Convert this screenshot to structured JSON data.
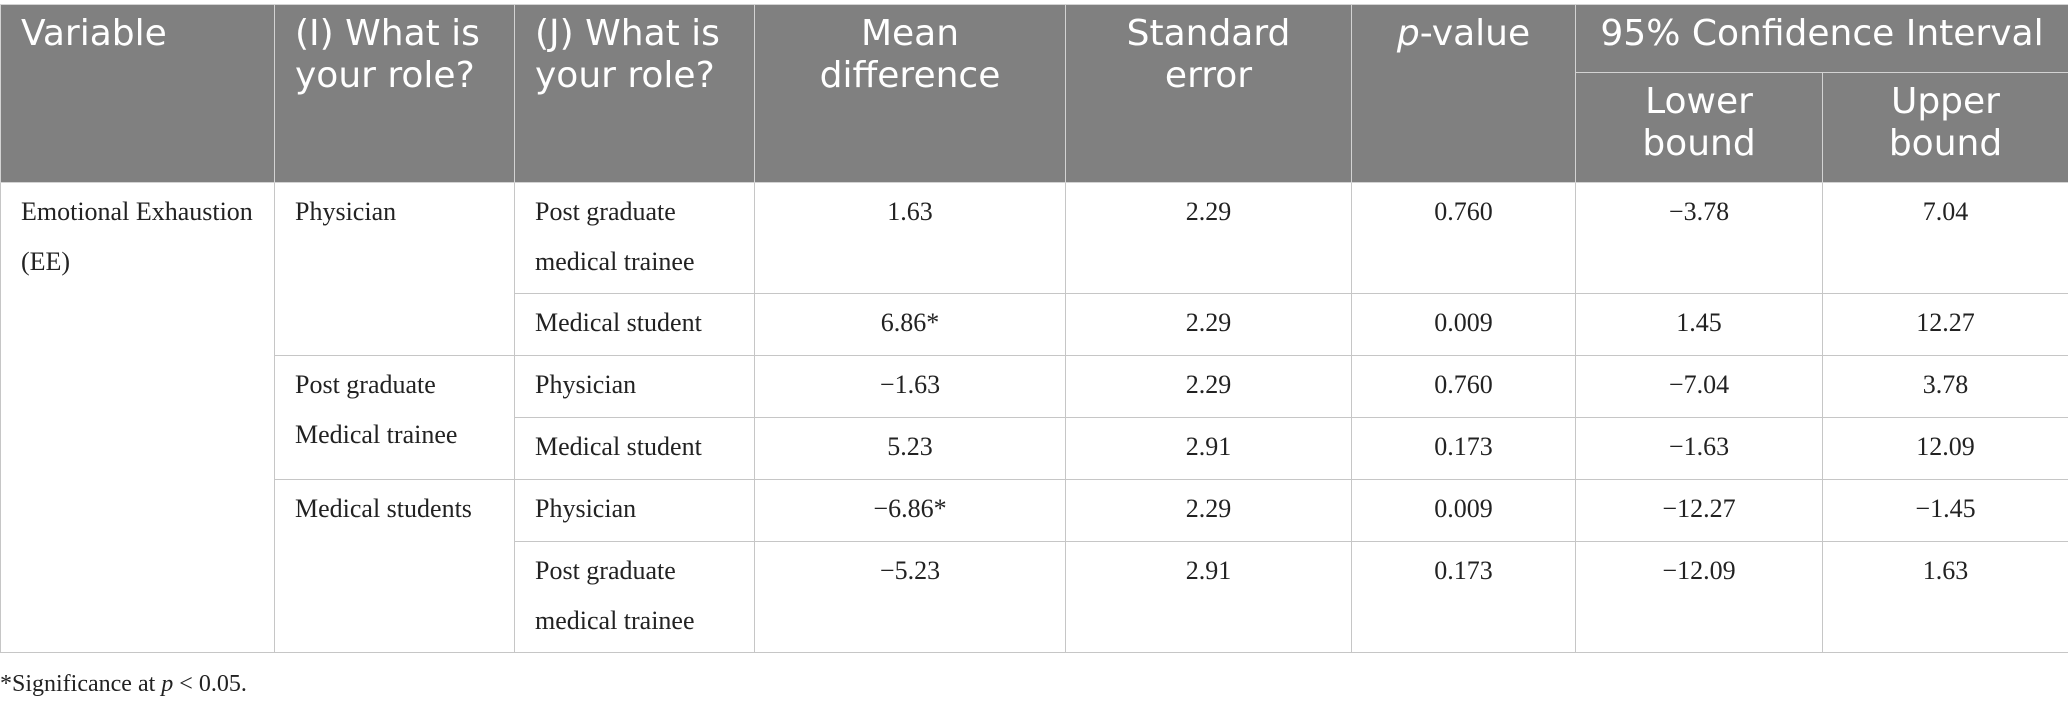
{
  "table": {
    "headers": {
      "variable": "Variable",
      "i_role": "(I) What is your role?",
      "j_role": "(J) What is your role?",
      "mean_difference": "Mean difference",
      "standard_error": "Standard error",
      "p_value_prefix": "p",
      "p_value_suffix": "-value",
      "ci": "95% Confidence Interval",
      "lower_bound": "Lower bound",
      "upper_bound": "Upper bound"
    },
    "variable": "Emotional Exhaustion (EE)",
    "groups": [
      {
        "i_role": "Physician",
        "rows": [
          {
            "j_role": "Post graduate medical trainee",
            "mean_difference": "1.63",
            "standard_error": "2.29",
            "p_value": "0.760",
            "lower": "−3.78",
            "upper": "7.04"
          },
          {
            "j_role": "Medical student",
            "mean_difference": "6.86*",
            "standard_error": "2.29",
            "p_value": "0.009",
            "lower": "1.45",
            "upper": "12.27"
          }
        ]
      },
      {
        "i_role": "Post graduate Medical trainee",
        "rows": [
          {
            "j_role": "Physician",
            "mean_difference": "−1.63",
            "standard_error": "2.29",
            "p_value": "0.760",
            "lower": "−7.04",
            "upper": "3.78"
          },
          {
            "j_role": "Medical student",
            "mean_difference": "5.23",
            "standard_error": "2.91",
            "p_value": "0.173",
            "lower": "−1.63",
            "upper": "12.09"
          }
        ]
      },
      {
        "i_role": "Medical students",
        "rows": [
          {
            "j_role": "Physician",
            "mean_difference": "−6.86*",
            "standard_error": "2.29",
            "p_value": "0.009",
            "lower": "−12.27",
            "upper": "−1.45"
          },
          {
            "j_role": "Post graduate medical trainee",
            "mean_difference": "−5.23",
            "standard_error": "2.91",
            "p_value": "0.173",
            "lower": "−12.09",
            "upper": "1.63"
          }
        ]
      }
    ]
  },
  "footnote": {
    "prefix": "*Significance at ",
    "symbol": "p",
    "suffix": " < 0.05."
  }
}
